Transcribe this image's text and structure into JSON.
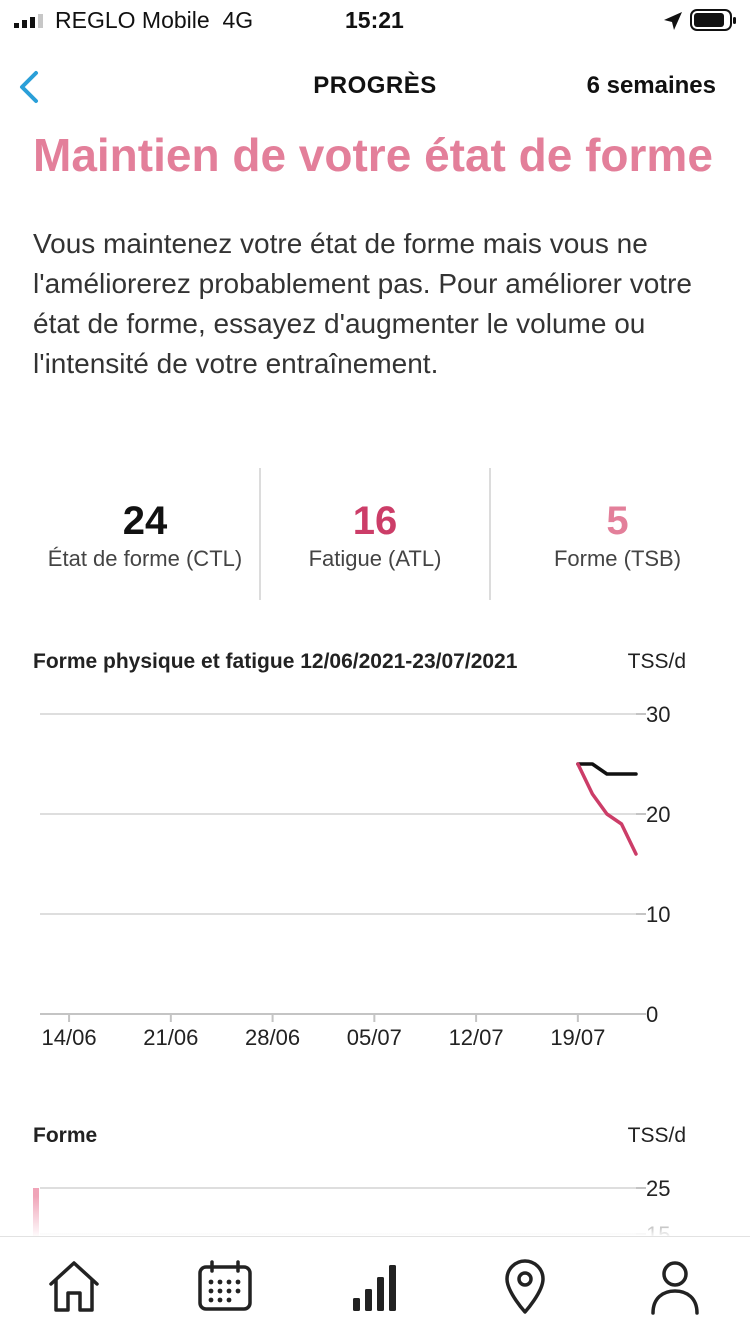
{
  "status_bar": {
    "carrier": "REGLO Mobile",
    "network": "4G",
    "time": "15:21"
  },
  "nav": {
    "title": "PROGRÈS",
    "period": "6 semaines",
    "back_icon": "chevron-left-icon"
  },
  "headline": "Maintien de votre état de forme",
  "description": "Vous maintenez votre état de forme mais vous ne l'améliorerez probablement pas. Pour améliorer votre état de forme, essayez d'augmenter le volume ou l'intensité de votre entraînement.",
  "metrics": [
    {
      "value": "24",
      "label": "État de forme (CTL)",
      "color": "#111111"
    },
    {
      "value": "16",
      "label": "Fatigue (ATL)",
      "color": "#cc3d68"
    },
    {
      "value": "5",
      "label": "Forme (TSB)",
      "color": "#e37f9a"
    }
  ],
  "colors": {
    "accent": "#e37f9a",
    "fatigue": "#cc3d68",
    "fitness": "#111111",
    "back": "#2a9fd8"
  },
  "chart_data": [
    {
      "type": "line",
      "title": "Forme physique et fatigue 12/06/2021-23/07/2021",
      "ylabel": "TSS/d",
      "ylim": [
        0,
        30
      ],
      "yticks": [
        "30",
        "20",
        "10",
        "0"
      ],
      "x_tick_labels": [
        "14/06",
        "21/06",
        "28/06",
        "05/07",
        "12/07",
        "19/07"
      ],
      "x_range": [
        "12/06",
        "23/07"
      ],
      "grid": true,
      "series": [
        {
          "key": "ctl",
          "color": "#111111",
          "x": [
            "19/07",
            "20/07",
            "21/07",
            "22/07",
            "23/07"
          ],
          "y": [
            25,
            25,
            24,
            24,
            24
          ]
        },
        {
          "key": "atl",
          "color": "#cc3d68",
          "x": [
            "19/07",
            "20/07",
            "21/07",
            "22/07",
            "23/07"
          ],
          "y": [
            25,
            22,
            20,
            19,
            16
          ]
        }
      ]
    },
    {
      "type": "bar",
      "title": "Forme",
      "ylabel": "TSS/d",
      "yticks": [
        "25",
        "15"
      ]
    }
  ],
  "tabs": [
    {
      "name": "home",
      "icon": "home-icon"
    },
    {
      "name": "calendar",
      "icon": "calendar-icon"
    },
    {
      "name": "progress",
      "icon": "bar-chart-icon",
      "active": true
    },
    {
      "name": "places",
      "icon": "map-pin-icon"
    },
    {
      "name": "profile",
      "icon": "user-icon"
    }
  ]
}
